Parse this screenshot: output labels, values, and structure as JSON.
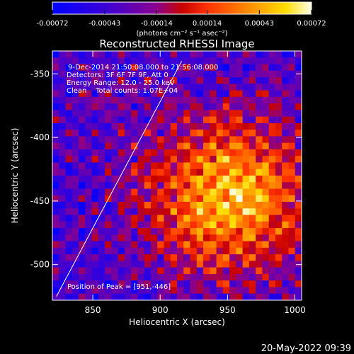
{
  "chart_data": {
    "type": "heatmap",
    "title": "Reconstructed RHESSI Image",
    "xlabel": "Heliocentric X (arcsec)",
    "ylabel": "Heliocentric Y (arcsec)",
    "xlim": [
      820,
      1005
    ],
    "ylim": [
      -528,
      -332
    ],
    "x_ticks": [
      "850",
      "900",
      "950",
      "1000"
    ],
    "x_tick_values": [
      850,
      900,
      950,
      1000
    ],
    "y_ticks": [
      "-350",
      "-400",
      "-450",
      "-500"
    ],
    "y_tick_values": [
      -350,
      -400,
      -450,
      -500
    ],
    "colorbar": {
      "ticks": [
        "-0.00072",
        "-0.00043",
        "-0.00014",
        "0.00014",
        "0.00043",
        "0.00072"
      ],
      "tick_values": [
        -0.00072,
        -0.00043,
        -0.00014,
        0.00014,
        0.00043,
        0.00072
      ],
      "range": [
        -0.00072,
        0.00072
      ],
      "units_label": "(photons cm⁻² s⁻¹ asec⁻²)"
    },
    "annotations": [
      "9-Dec-2014 21:50:08.000 to 21:56:08.000",
      "Detectors: 3F 6F 7F 9F, Att 0",
      "Energy Range: 12.0 - 25.0 keV",
      "Clean    Total counts: 1.07E+04",
      "Position of Peak = [951,-446]"
    ],
    "peak": {
      "x": 951,
      "y": -446
    },
    "limb_line": {
      "x": [
        823,
        916
      ],
      "y": [
        -525,
        -340
      ]
    },
    "colormap": "black-blue-purple-red-orange-yellow-white",
    "grid": false
  },
  "footer": {
    "timestamp": "20-May-2022 09:39"
  },
  "colors": {
    "background": "#000000",
    "text": "#ffffff"
  }
}
